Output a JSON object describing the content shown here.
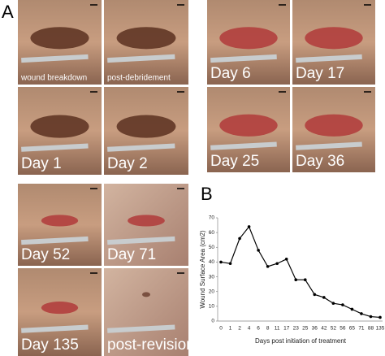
{
  "panel_a_label": "A",
  "panel_b_label": "B",
  "photos": [
    {
      "label": "wound breakdown"
    },
    {
      "label": "post-debridement"
    },
    {
      "label": "Day 1"
    },
    {
      "label": "Day 2"
    },
    {
      "label": "Day 6"
    },
    {
      "label": "Day 17"
    },
    {
      "label": "Day 25"
    },
    {
      "label": "Day 36"
    },
    {
      "label": "Day 52"
    },
    {
      "label": "Day 71"
    },
    {
      "label": "Day 135"
    },
    {
      "label": "post-revision"
    }
  ],
  "chart_data": {
    "type": "line",
    "categories": [
      "0",
      "1",
      "2",
      "4",
      "6",
      "8",
      "11",
      "17",
      "23",
      "25",
      "36",
      "42",
      "52",
      "56",
      "65",
      "71",
      "88",
      "135"
    ],
    "values": [
      40,
      39,
      56,
      64,
      48,
      37,
      39,
      42,
      28,
      28,
      18,
      16,
      12,
      11,
      8,
      5,
      3,
      2.5
    ],
    "color": "#000000",
    "ylim": [
      0,
      70
    ],
    "yticks": [
      0,
      10,
      20,
      30,
      40,
      50,
      60,
      70
    ],
    "xlabel": "Days post initiation of treatment",
    "ylabel": "Wound Surface Area (cm2)"
  }
}
